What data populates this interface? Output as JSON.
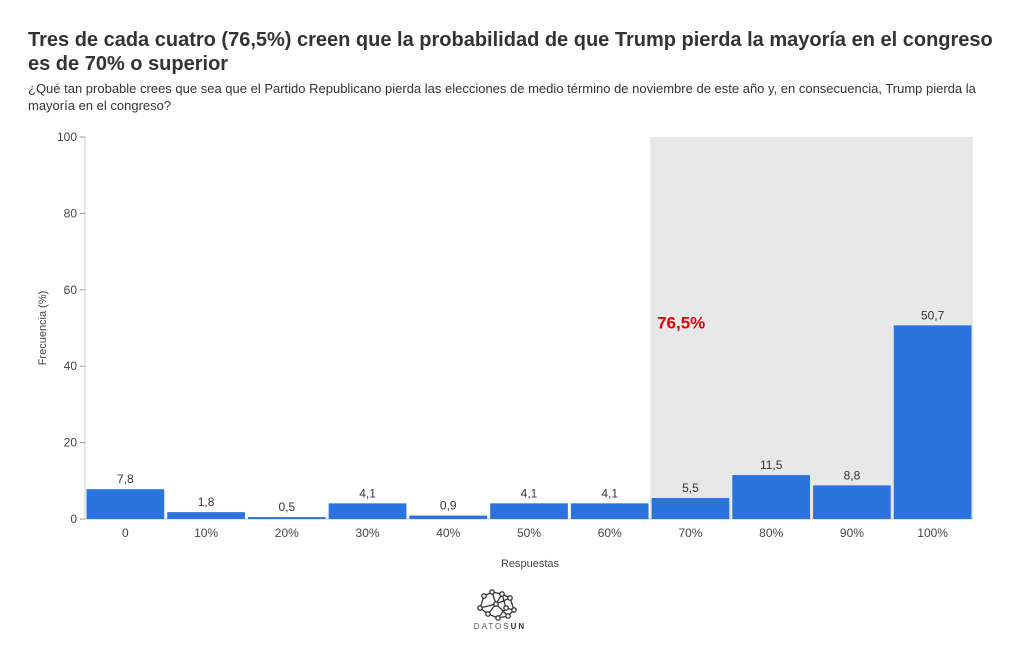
{
  "title": "Tres de cada cuatro (76,5%) creen que la probabilidad de que Trump pierda la mayoría en el congreso es de 70% o superior",
  "subtitle": "¿Qué tan probable crees que sea que el Partido Republicano pierda las elecciones de medio término de noviembre de este año y, en consecuencia, Trump pierda la mayoría en el congreso?",
  "logo": {
    "text_light": "DATOS",
    "text_bold": "UN"
  },
  "chart_data": {
    "type": "bar",
    "categories": [
      "0",
      "10%",
      "20%",
      "30%",
      "40%",
      "50%",
      "60%",
      "70%",
      "80%",
      "90%",
      "100%"
    ],
    "values": [
      7.8,
      1.8,
      0.5,
      4.1,
      0.9,
      4.1,
      4.1,
      5.5,
      11.5,
      8.8,
      50.7
    ],
    "value_labels": [
      "7,8",
      "1,8",
      "0,5",
      "4,1",
      "0,9",
      "4,1",
      "4,1",
      "5,5",
      "11,5",
      "8,8",
      "50,7"
    ],
    "xlabel": "Respuestas",
    "ylabel": "Frecuencia (%)",
    "ylim": [
      0,
      100
    ],
    "yticks": [
      0,
      20,
      40,
      60,
      80,
      100
    ],
    "grid": false,
    "highlight": {
      "from_category": "70%",
      "to_category": "100%",
      "color": "#e8e8e8"
    },
    "annotation": {
      "text": "76,5%",
      "color": "#e60000"
    },
    "bar_color": "#2b74dd"
  }
}
